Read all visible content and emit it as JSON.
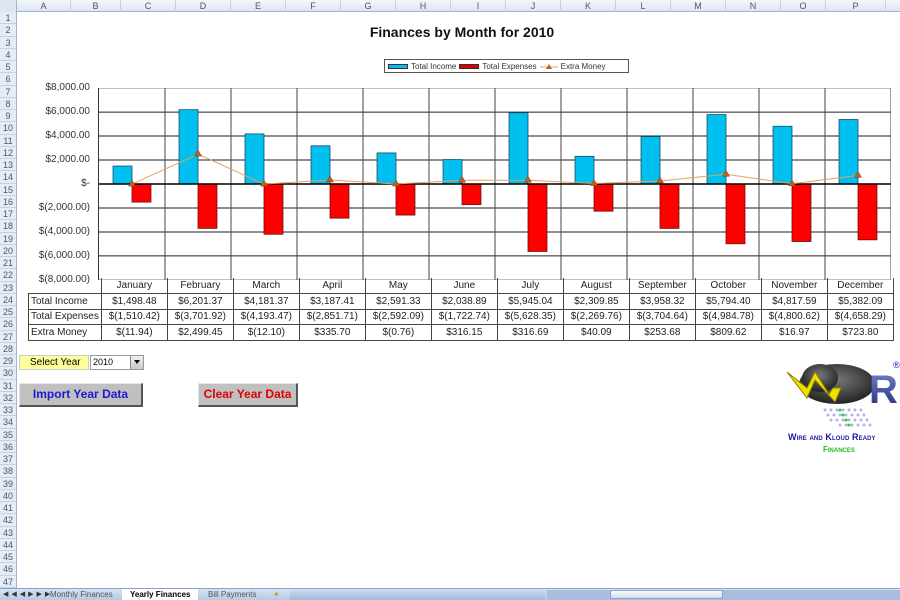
{
  "spreadsheet": {
    "columns": [
      "A",
      "B",
      "C",
      "D",
      "E",
      "F",
      "G",
      "H",
      "I",
      "J",
      "K",
      "L",
      "M",
      "N",
      "O",
      "P"
    ],
    "rows": [
      "1",
      "2",
      "3",
      "4",
      "5",
      "6",
      "7",
      "8",
      "9",
      "10",
      "11",
      "12",
      "13",
      "14",
      "15",
      "16",
      "17",
      "18",
      "19",
      "20",
      "21",
      "22",
      "23",
      "24",
      "25",
      "26",
      "27",
      "28",
      "29",
      "30",
      "31",
      "32",
      "33",
      "34",
      "35",
      "36",
      "37",
      "38",
      "39",
      "40",
      "41",
      "42",
      "43",
      "44",
      "45",
      "46",
      "47"
    ]
  },
  "chart_data": {
    "type": "bar",
    "title": "Finances by Month for 2010",
    "categories": [
      "January",
      "February",
      "March",
      "April",
      "May",
      "June",
      "July",
      "August",
      "September",
      "October",
      "November",
      "December"
    ],
    "series": [
      {
        "name": "Total Income",
        "kind": "bar",
        "color": "#00c0f0",
        "values": [
          1498.48,
          6201.37,
          4181.37,
          3187.41,
          2591.33,
          2038.89,
          5945.04,
          2309.85,
          3958.32,
          5794.4,
          4817.59,
          5382.09
        ]
      },
      {
        "name": "Total Expenses",
        "kind": "bar",
        "color": "#ff0000",
        "values": [
          -1510.42,
          -3701.92,
          -4193.47,
          -2851.71,
          -2592.09,
          -1722.74,
          -5628.35,
          -2269.76,
          -3704.64,
          -4984.78,
          -4800.62,
          -4658.29
        ]
      },
      {
        "name": "Extra Money",
        "kind": "line",
        "color": "#e8a060",
        "values": [
          -11.94,
          2499.45,
          -12.1,
          335.7,
          -0.76,
          316.15,
          316.69,
          40.09,
          253.68,
          809.62,
          16.97,
          723.8
        ]
      }
    ],
    "ylim": [
      -8000,
      8000
    ],
    "yticks": [
      "$8,000.00",
      "$6,000.00",
      "$4,000.00",
      "$2,000.00",
      "$-",
      "$(2,000.00)",
      "$(4,000.00)",
      "$(6,000.00)",
      "$(8,000.00)"
    ],
    "grid": true,
    "legend_position": "top",
    "xlabel": "",
    "ylabel": ""
  },
  "data_table": {
    "row_labels": [
      "Total Income",
      "Total Expenses",
      "Extra Money"
    ],
    "income": [
      "$1,498.48",
      "$6,201.37",
      "$4,181.37",
      "$3,187.41",
      "$2,591.33",
      "$2,038.89",
      "$5,945.04",
      "$2,309.85",
      "$3,958.32",
      "$5,794.40",
      "$4,817.59",
      "$5,382.09"
    ],
    "expenses": [
      "$(1,510.42)",
      "$(3,701.92)",
      "$(4,193.47)",
      "$(2,851.71)",
      "$(2,592.09)",
      "$(1,722.74)",
      "$(5,628.35)",
      "$(2,269.76)",
      "$(3,704.64)",
      "$(4,984.78)",
      "$(4,800.62)",
      "$(4,658.29)"
    ],
    "extra": [
      "$(11.94)",
      "$2,499.45",
      "$(12.10)",
      "$335.70",
      "$(0.76)",
      "$316.15",
      "$316.69",
      "$40.09",
      "$253.68",
      "$809.62",
      "$16.97",
      "$723.80"
    ]
  },
  "controls": {
    "select_year_label": "Select Year",
    "select_year_value": "2010",
    "import_button": "Import Year Data",
    "clear_button": "Clear Year Data"
  },
  "logo": {
    "line1": "Wire and Kloud Ready",
    "line2": "Finances",
    "registered": "®"
  },
  "sheet_tabs": [
    {
      "label": "Monthly Finances",
      "active": false
    },
    {
      "label": "Yearly Finances",
      "active": true
    },
    {
      "label": "Bill Payments",
      "active": false
    }
  ]
}
